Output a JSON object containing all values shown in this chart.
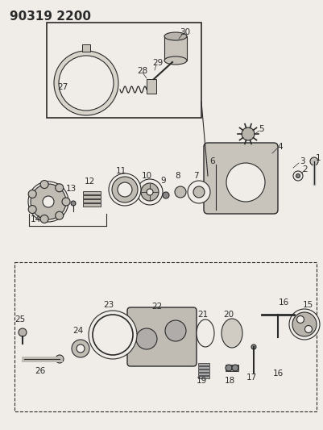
{
  "title": "90319 2200",
  "bg_color": "#f0ede8",
  "line_color": "#2a2a2a",
  "title_fontsize": 11,
  "label_fontsize": 7.5,
  "figsize": [
    4.01,
    5.33
  ],
  "dpi": 100
}
